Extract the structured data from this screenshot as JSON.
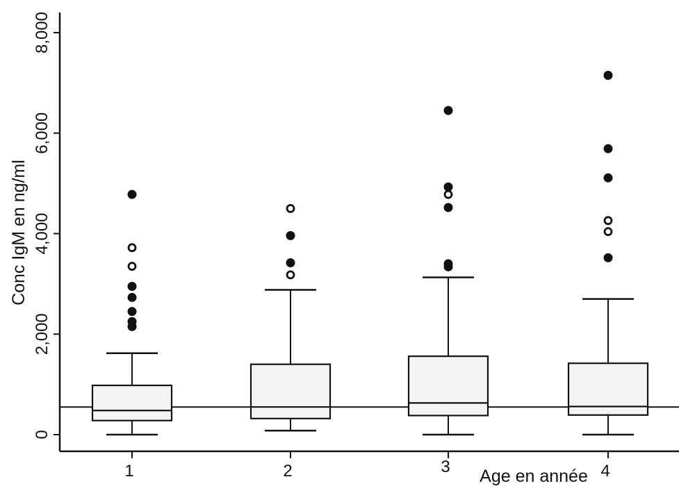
{
  "chart_data": {
    "type": "box",
    "title": "",
    "xlabel": "Age en année",
    "ylabel": "Conc IgM en ng/ml",
    "ylim": [
      0,
      8200
    ],
    "yticks": [
      0,
      2000,
      4000,
      6000,
      8000
    ],
    "ytick_labels": [
      "0",
      "2,000",
      "4,000",
      "6,000",
      "8,000"
    ],
    "categories": [
      "1",
      "2",
      "3",
      "4"
    ],
    "reference_line": 550,
    "boxes": [
      {
        "category": "1",
        "min": 0,
        "q1": 280,
        "median": 480,
        "q3": 980,
        "max": 1620,
        "outliers": [
          {
            "value": 4780,
            "marker": "filled"
          },
          {
            "value": 3720,
            "marker": "open"
          },
          {
            "value": 3350,
            "marker": "open"
          },
          {
            "value": 2950,
            "marker": "filled"
          },
          {
            "value": 2730,
            "marker": "filled"
          },
          {
            "value": 2450,
            "marker": "filled"
          },
          {
            "value": 2250,
            "marker": "filled"
          },
          {
            "value": 2150,
            "marker": "filled"
          }
        ]
      },
      {
        "category": "2",
        "min": 80,
        "q1": 320,
        "median": 550,
        "q3": 1400,
        "max": 2880,
        "outliers": [
          {
            "value": 4500,
            "marker": "open"
          },
          {
            "value": 3960,
            "marker": "filled"
          },
          {
            "value": 3420,
            "marker": "filled"
          },
          {
            "value": 3180,
            "marker": "open"
          }
        ]
      },
      {
        "category": "3",
        "min": 0,
        "q1": 380,
        "median": 630,
        "q3": 1560,
        "max": 3130,
        "outliers": [
          {
            "value": 6450,
            "marker": "filled"
          },
          {
            "value": 4930,
            "marker": "filled"
          },
          {
            "value": 4780,
            "marker": "open"
          },
          {
            "value": 4520,
            "marker": "filled"
          },
          {
            "value": 3400,
            "marker": "filled"
          },
          {
            "value": 3340,
            "marker": "filled"
          }
        ]
      },
      {
        "category": "4",
        "min": 0,
        "q1": 390,
        "median": 560,
        "q3": 1420,
        "max": 2700,
        "outliers": [
          {
            "value": 7150,
            "marker": "filled"
          },
          {
            "value": 5690,
            "marker": "filled"
          },
          {
            "value": 5110,
            "marker": "filled"
          },
          {
            "value": 4260,
            "marker": "open"
          },
          {
            "value": 4040,
            "marker": "open"
          },
          {
            "value": 3520,
            "marker": "filled"
          }
        ]
      }
    ]
  }
}
